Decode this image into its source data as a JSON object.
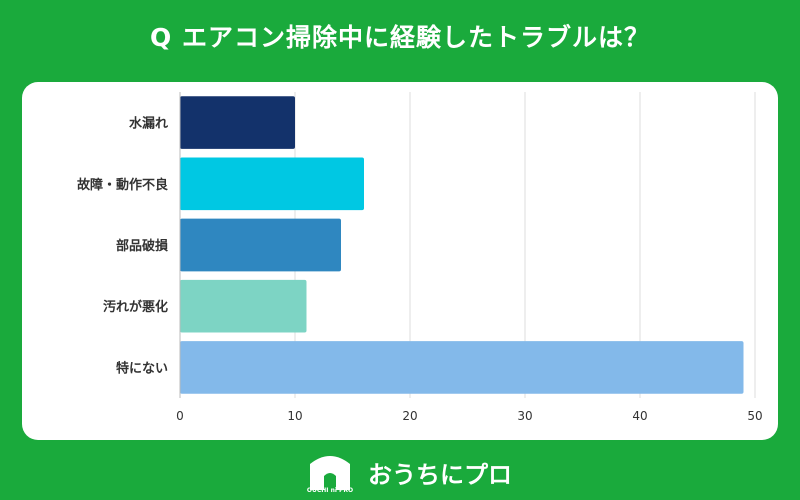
{
  "title": "Q エアコン掃除中に経験したトラブルは？",
  "brand": {
    "name": "おうちにプロ",
    "logo_text": "OUCHI ni PRO"
  },
  "colors": {
    "background": "#1aaa3c",
    "card": "#ffffff",
    "grid": "#dddddd",
    "axis_text": "#333333"
  },
  "chart_data": {
    "type": "bar",
    "orientation": "horizontal",
    "title": "",
    "xlabel": "",
    "ylabel": "",
    "categories": [
      "水漏れ",
      "故障・動作不良",
      "部品破損",
      "汚れが悪化",
      "特にない"
    ],
    "values": [
      10,
      16,
      14,
      11,
      49
    ],
    "bar_colors": [
      "#13326b",
      "#00c8e3",
      "#2f87c0",
      "#7dd4c4",
      "#83b9ea"
    ],
    "xlim": [
      0,
      50
    ],
    "xticks": [
      0,
      10,
      20,
      30,
      40,
      50
    ],
    "grid": true
  }
}
